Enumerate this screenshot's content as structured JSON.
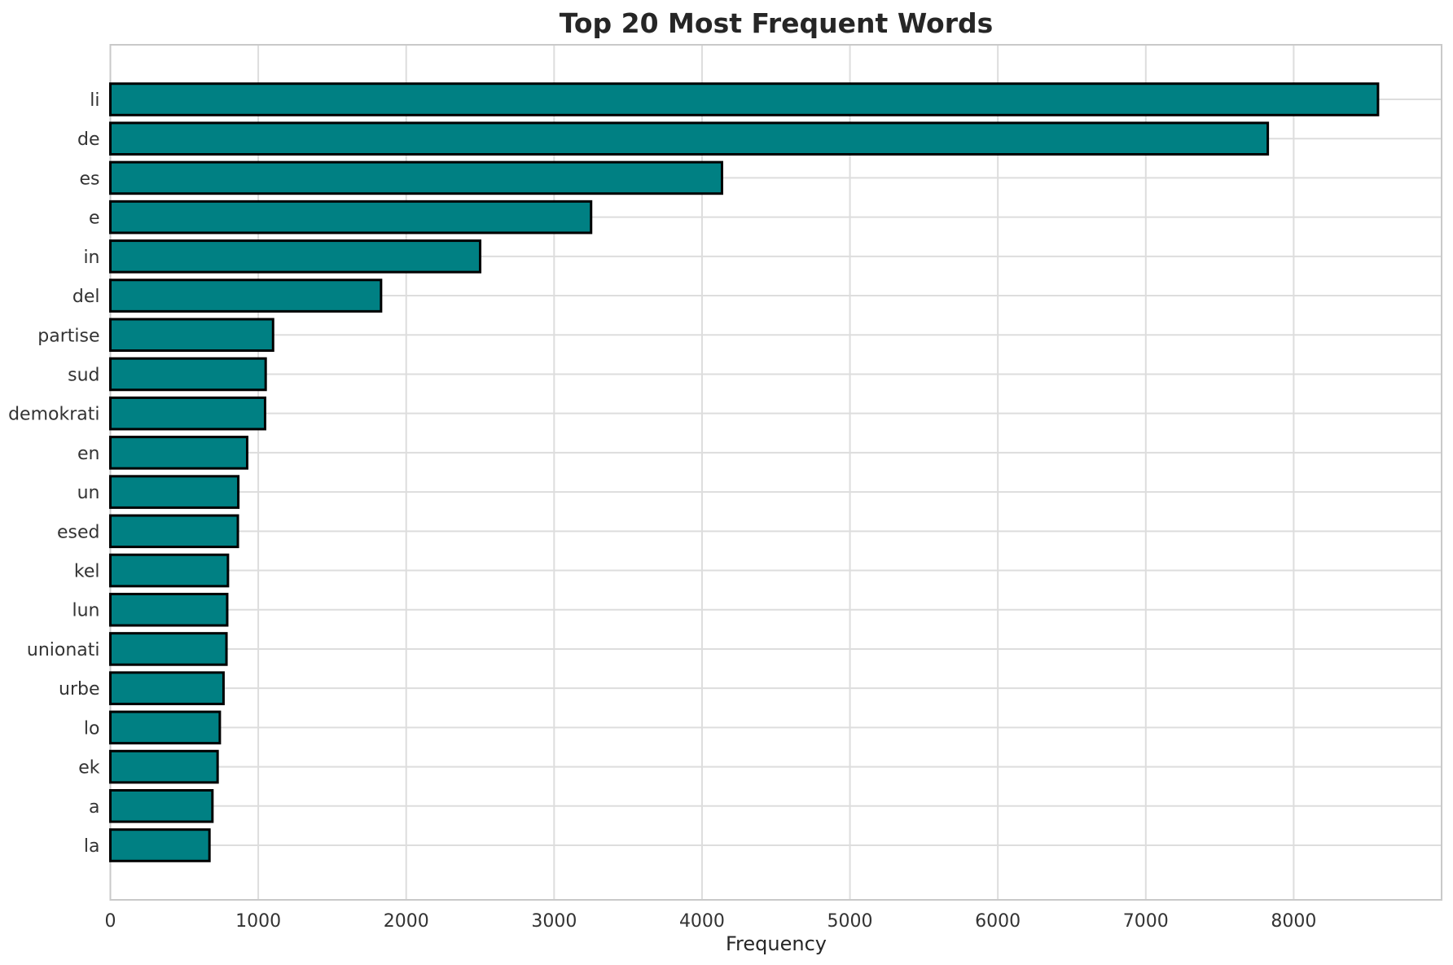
{
  "chart_data": {
    "type": "bar",
    "orientation": "horizontal",
    "title": "Top 20 Most Frequent Words",
    "xlabel": "Frequency",
    "ylabel": "",
    "categories": [
      "li",
      "de",
      "es",
      "e",
      "in",
      "del",
      "partise",
      "sud",
      "demokrati",
      "en",
      "un",
      "esed",
      "kel",
      "lun",
      "unionati",
      "urbe",
      "lo",
      "ek",
      "a",
      "la"
    ],
    "values": [
      8570,
      7825,
      4135,
      3250,
      2500,
      1830,
      1100,
      1050,
      1046,
      925,
      865,
      862,
      795,
      790,
      785,
      765,
      740,
      725,
      690,
      670
    ],
    "xlim": [
      0,
      9000
    ],
    "xticks": [
      0,
      1000,
      2000,
      3000,
      4000,
      5000,
      6000,
      7000,
      8000
    ],
    "grid": true,
    "legend": false,
    "bar_fraction": 0.8,
    "colors": {
      "bar_fill": "#008083",
      "bar_edge": "#000000",
      "grid": "#dddddd",
      "frame": "#c9c9c9",
      "title_text": "#262626",
      "tick_text": "#333333",
      "background": "#ffffff"
    }
  }
}
